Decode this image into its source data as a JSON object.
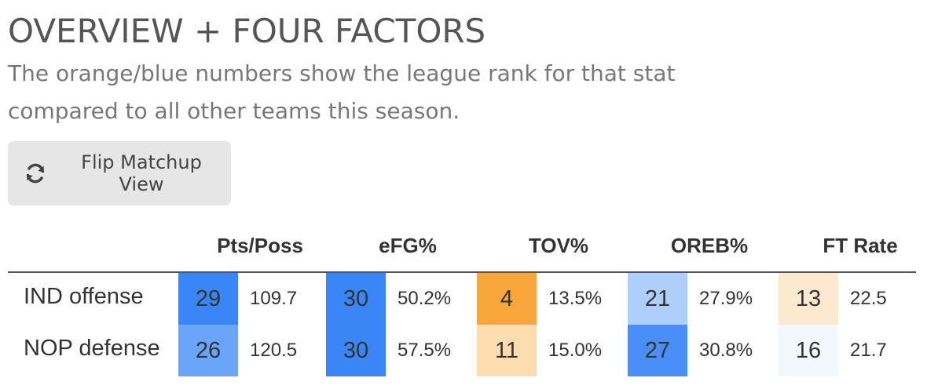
{
  "header": {
    "title": "OVERVIEW + FOUR FACTORS",
    "subtitle_line1": "The orange/blue numbers show the league rank for that stat",
    "subtitle_line2": "compared to all other teams this season."
  },
  "flip_button": {
    "label": "Flip Matchup View",
    "icon": "refresh-icon"
  },
  "columns": [
    "Pts/Poss",
    "eFG%",
    "TOV%",
    "OREB%",
    "FT Rate"
  ],
  "rows": [
    {
      "label": "IND offense",
      "cells": [
        {
          "rank": "29",
          "value": "109.7",
          "color": "#3a86f7"
        },
        {
          "rank": "30",
          "value": "50.2%",
          "color": "#3a86f7"
        },
        {
          "rank": "4",
          "value": "13.5%",
          "color": "#f8a73a"
        },
        {
          "rank": "21",
          "value": "27.9%",
          "color": "#aecffb"
        },
        {
          "rank": "13",
          "value": "22.5",
          "color": "#fde9d0"
        }
      ]
    },
    {
      "label": "NOP defense",
      "cells": [
        {
          "rank": "26",
          "value": "120.5",
          "color": "#6aa5f9"
        },
        {
          "rank": "30",
          "value": "57.5%",
          "color": "#3a86f7"
        },
        {
          "rank": "11",
          "value": "15.0%",
          "color": "#fdddb0"
        },
        {
          "rank": "27",
          "value": "30.8%",
          "color": "#4a8ff8"
        },
        {
          "rank": "16",
          "value": "21.7",
          "color": "#f3f7fe"
        }
      ]
    }
  ]
}
